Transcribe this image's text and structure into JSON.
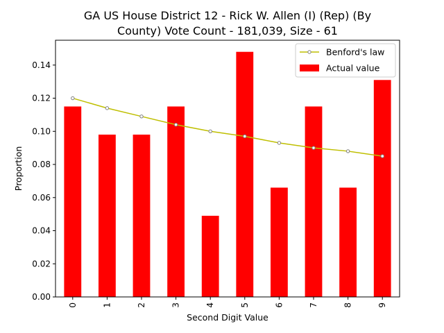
{
  "chart_data": {
    "type": "bar",
    "title_lines": [
      "GA US House District 12 - Rick W. Allen (I) (Rep) (By",
      "County) Vote Count - 181,039, Size - 61"
    ],
    "xlabel": "Second Digit Value",
    "ylabel": "Proportion",
    "categories": [
      "0",
      "1",
      "2",
      "3",
      "4",
      "5",
      "6",
      "7",
      "8",
      "9"
    ],
    "ylim": [
      0,
      0.155
    ],
    "yticks": [
      0.0,
      0.02,
      0.04,
      0.06,
      0.08,
      0.1,
      0.12,
      0.14
    ],
    "ytick_labels": [
      "0.00",
      "0.02",
      "0.04",
      "0.06",
      "0.08",
      "0.10",
      "0.12",
      "0.14"
    ],
    "grid": false,
    "legend_position": "top-right",
    "series": [
      {
        "name": "Actual value",
        "kind": "bar",
        "color": "#ff0000",
        "values": [
          0.115,
          0.098,
          0.098,
          0.115,
          0.049,
          0.148,
          0.066,
          0.115,
          0.066,
          0.131
        ]
      },
      {
        "name": "Benford's law",
        "kind": "line",
        "color": "#bfbf00",
        "marker_edge": "#808080",
        "values": [
          0.12,
          0.114,
          0.109,
          0.104,
          0.1,
          0.097,
          0.093,
          0.09,
          0.088,
          0.085
        ]
      }
    ],
    "legend_order": [
      "Benford's law",
      "Actual value"
    ]
  }
}
